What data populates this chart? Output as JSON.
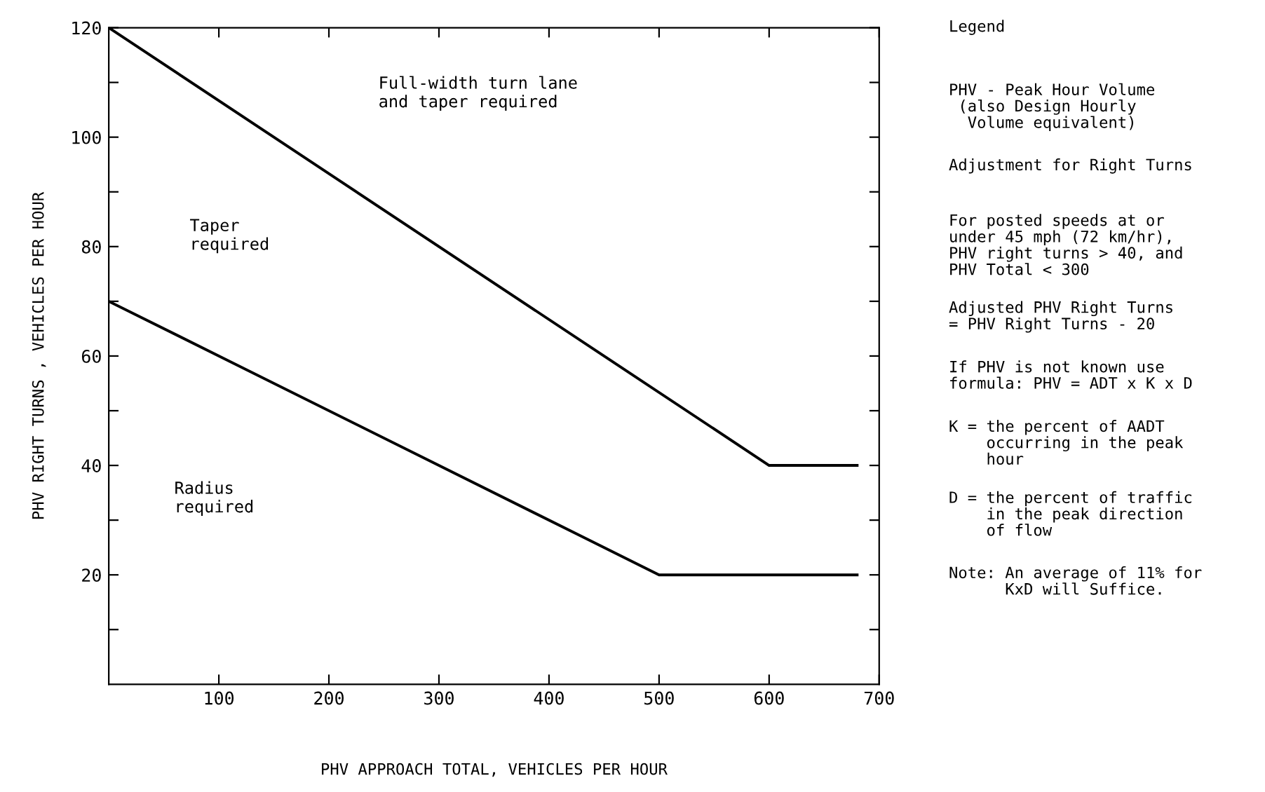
{
  "chart_data": {
    "type": "line",
    "xlabel": "PHV APPROACH TOTAL, VEHICLES PER HOUR",
    "ylabel": "PHV RIGHT TURNS , VEHICLES PER HOUR",
    "series": [
      {
        "color": "#000000",
        "x": [
          0,
          600,
          680
        ],
        "values": [
          120,
          40,
          40
        ]
      },
      {
        "color": "#000000",
        "x": [
          0,
          500,
          680
        ],
        "values": [
          70,
          20,
          20
        ]
      }
    ],
    "xlim": [
      0,
      700
    ],
    "ylim": [
      0,
      120
    ],
    "xticks": [
      100,
      200,
      300,
      400,
      500,
      600,
      700
    ],
    "yticks": [
      {
        "value": 10,
        "label": null
      },
      20,
      {
        "value": 30,
        "label": null
      },
      40,
      {
        "value": 50,
        "label": null
      },
      60,
      {
        "value": 70,
        "label": null
      },
      80,
      {
        "value": 90,
        "label": null
      },
      100,
      {
        "value": 110,
        "label": null
      },
      120
    ],
    "grid": false,
    "legend": false,
    "marker": "none",
    "line_style": "solid",
    "annotations": [
      "Full-width turn lane\nand taper required",
      "Taper\nrequired",
      "Radius\nrequired",
      "Legend",
      "PHV - Peak Hour Volume\n (also Design Hourly\n  Volume equivalent)",
      "Adjustment for Right Turns",
      "For posted speeds at or\nunder 45 mph (72 km/hr),\nPHV right turns > 40, and\nPHV Total < 300",
      "Adjusted PHV Right Turns\n= PHV Right Turns - 20",
      "If PHV is not known use\nformula: PHV = ADT x K x D",
      "K = the percent of AADT\n    occurring in the peak\n    hour",
      "D = the percent of traffic\n    in the peak direction\n    of flow",
      "Note: An average of 11% for\n      KxD will Suffice."
    ]
  }
}
